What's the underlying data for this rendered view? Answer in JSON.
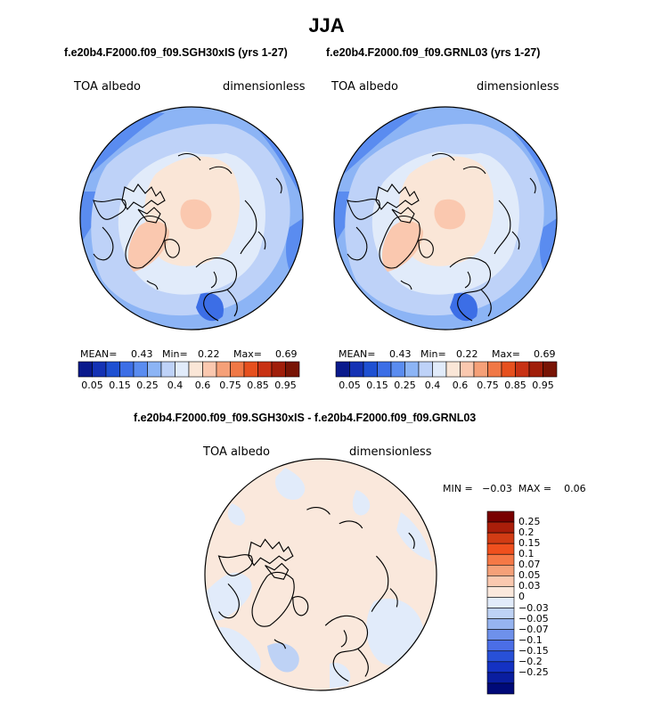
{
  "page": {
    "title": "JJA",
    "diff_title": "f.e20b4.F2000.f09_f09.SGH30xIS - f.e20b4.F2000.f09_f09.GRNL03"
  },
  "panels": [
    {
      "subtitle": "f.e20b4.F2000.f09_f09.SGH30xIS (yrs 1-27)",
      "variable": "TOA albedo",
      "units": "dimensionless",
      "mean_label": "MEAN=",
      "mean": "0.43",
      "min_label": "Min=",
      "min": "0.22",
      "max_label": "Max=",
      "max": "0.69"
    },
    {
      "subtitle": "f.e20b4.F2000.f09_f09.GRNL03 (yrs 1-27)",
      "variable": "TOA albedo",
      "units": "dimensionless",
      "mean_label": "MEAN=",
      "mean": "0.43",
      "min_label": "Min=",
      "min": "0.22",
      "max_label": "Max=",
      "max": "0.69"
    }
  ],
  "colorbar": {
    "colors": [
      "#0a1a8c",
      "#1432b4",
      "#1e50d2",
      "#3c6ee6",
      "#5a8cf0",
      "#8cb4f5",
      "#bed2f8",
      "#e1ebfa",
      "#fae6d7",
      "#fac8af",
      "#f5a078",
      "#f07846",
      "#e6501e",
      "#c83214",
      "#a01e0a",
      "#781405"
    ],
    "tick_labels": [
      "0.05",
      "0.15",
      "0.25",
      "0.4",
      "0.6",
      "0.75",
      "0.85",
      "0.95"
    ]
  },
  "diff": {
    "variable": "TOA albedo",
    "units": "dimensionless",
    "minmax": "MIN =   −0.03  MAX =    0.06",
    "colors": [
      "#780000",
      "#aa1e0a",
      "#d23c14",
      "#f0501e",
      "#f57846",
      "#f5a078",
      "#fac8af",
      "#fae8dc",
      "#e1ebfa",
      "#bed2f5",
      "#96b4f0",
      "#6e91eb",
      "#4b6ee6",
      "#2850d7",
      "#1432c3",
      "#0a1ea0",
      "#000a78"
    ],
    "labels": [
      "0.25",
      "0.2",
      "0.15",
      "0.1",
      "0.07",
      "0.05",
      "0.03",
      "0",
      "−0.03",
      "−0.05",
      "−0.07",
      "−0.1",
      "−0.15",
      "−0.2",
      "−0.25"
    ]
  }
}
